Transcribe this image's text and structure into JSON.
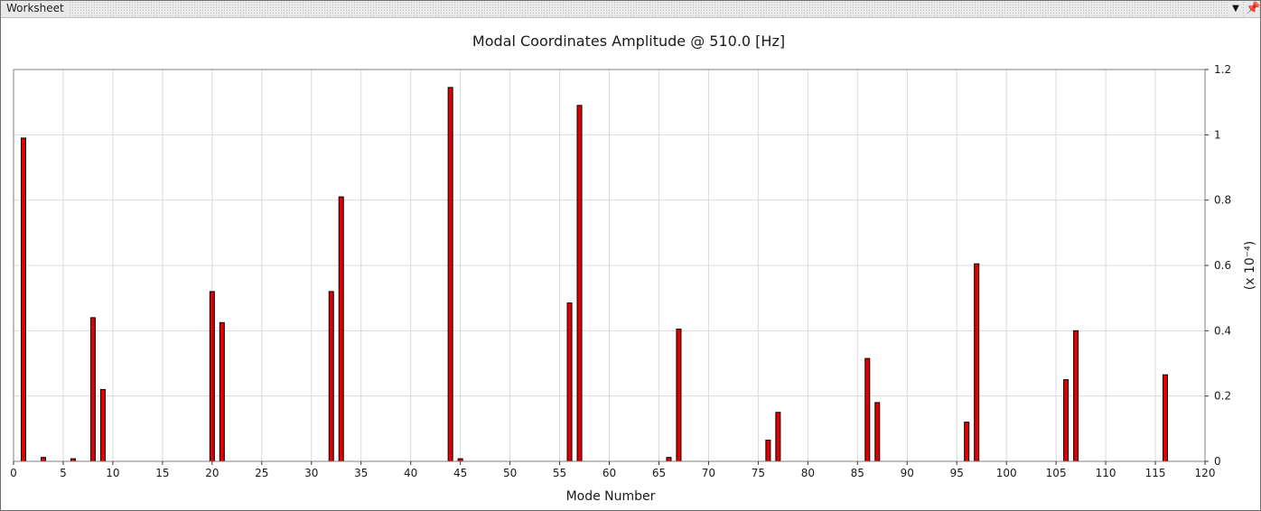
{
  "panel": {
    "title": "Worksheet",
    "dropdown_icon": "triangle-down-icon",
    "pin_icon": "pin-icon"
  },
  "chart_data": {
    "type": "bar",
    "title": "Modal Coordinates Amplitude @ 510.0 [Hz]",
    "xlabel": "Mode Number",
    "ylabel": "(x 10⁻⁴)",
    "xlim": [
      0,
      120
    ],
    "ylim": [
      0,
      1.2
    ],
    "y_scale_note": "(x 10⁻⁴)",
    "x_ticks": [
      0,
      5,
      10,
      15,
      20,
      25,
      30,
      35,
      40,
      45,
      50,
      55,
      60,
      65,
      70,
      75,
      80,
      85,
      90,
      95,
      100,
      105,
      110,
      115,
      120
    ],
    "y_ticks": [
      0,
      0.2,
      0.4,
      0.6,
      0.8,
      1,
      1.2
    ],
    "y_tick_labels": [
      "0",
      "0.2",
      "0.4",
      "0.6",
      "0.8",
      "1",
      "1.2"
    ],
    "y_axis_side": "right",
    "grid": true,
    "bar_color": "#e00000",
    "bar_edge_color": "#000000",
    "x": [
      1,
      3,
      6,
      8,
      9,
      20,
      21,
      32,
      33,
      44,
      45,
      56,
      57,
      66,
      67,
      76,
      77,
      86,
      87,
      96,
      97,
      106,
      107,
      116
    ],
    "values": [
      0.99,
      0.012,
      0.008,
      0.44,
      0.22,
      0.52,
      0.425,
      0.52,
      0.81,
      1.145,
      0.008,
      0.485,
      1.09,
      0.012,
      0.405,
      0.065,
      0.15,
      0.315,
      0.18,
      0.12,
      0.605,
      0.25,
      0.4,
      0.265
    ]
  }
}
